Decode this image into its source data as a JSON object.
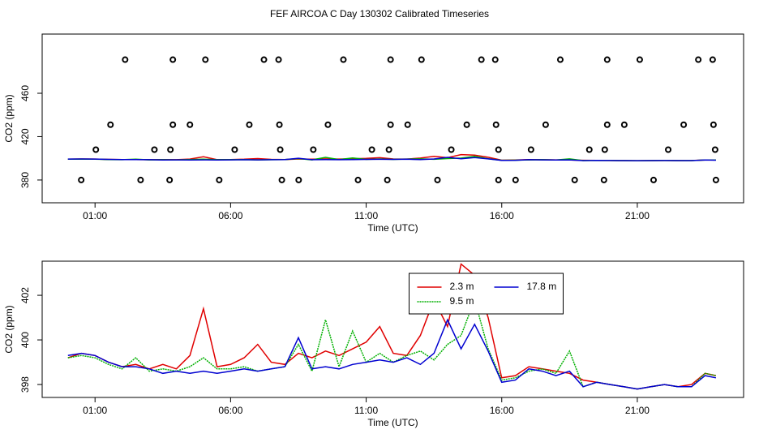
{
  "chart_data": [
    {
      "type": "line",
      "title": "FEF AIRCOA C  Day 130302  Calibrated Timeseries",
      "xlabel": "Time (UTC)",
      "ylabel": "CO2 (ppm)",
      "xlim": [
        -0.95,
        24.92
      ],
      "ylim": [
        359,
        514.6
      ],
      "xticks": [
        {
          "value": 1,
          "label": "01:00"
        },
        {
          "value": 6,
          "label": "06:00"
        },
        {
          "value": 11,
          "label": "11:00"
        },
        {
          "value": 16,
          "label": "16:00"
        },
        {
          "value": 21,
          "label": "21:00"
        }
      ],
      "yticks": [
        380,
        420,
        460
      ],
      "x": [
        0,
        0.5,
        1,
        1.5,
        2,
        2.5,
        3,
        3.5,
        4,
        4.5,
        5,
        5.5,
        6,
        6.5,
        7,
        7.5,
        8,
        8.5,
        9,
        9.5,
        10,
        10.5,
        11,
        11.5,
        12,
        12.5,
        13,
        13.5,
        14,
        14.5,
        15,
        15.5,
        16,
        16.5,
        17,
        17.5,
        18,
        18.5,
        19,
        19.5,
        20,
        20.5,
        21,
        21.5,
        22,
        22.5,
        23,
        23.5,
        23.9
      ],
      "series": [
        {
          "color": "#e00000",
          "values": [
            399.2,
            399.4,
            399.3,
            399.0,
            398.8,
            398.9,
            398.7,
            398.9,
            398.7,
            399.3,
            401.4,
            398.8,
            398.9,
            399.2,
            399.8,
            399.0,
            398.9,
            399.4,
            399.2,
            399.5,
            399.3,
            399.6,
            399.9,
            400.6,
            399.4,
            399.3,
            400.2,
            401.8,
            400.6,
            403.4,
            402.9,
            401.0,
            398.3,
            398.4,
            398.8,
            398.7,
            398.6,
            398.5,
            398.2,
            398.1,
            398.0,
            397.9,
            397.8,
            397.9,
            398.0,
            397.9,
            398.0,
            398.5,
            398.4
          ]
        },
        {
          "color": "#00b000",
          "values": [
            399.2,
            399.3,
            399.2,
            398.9,
            398.7,
            399.2,
            398.6,
            398.7,
            398.6,
            398.8,
            399.2,
            398.7,
            398.7,
            398.8,
            398.6,
            398.7,
            398.8,
            399.8,
            398.6,
            400.9,
            398.8,
            400.4,
            399.0,
            399.4,
            399.0,
            399.3,
            399.5,
            399.1,
            399.8,
            400.2,
            401.8,
            399.6,
            398.2,
            398.3,
            398.6,
            398.7,
            398.5,
            399.5,
            397.9,
            398.1,
            398.0,
            397.9,
            397.8,
            397.9,
            398.0,
            397.9,
            397.9,
            398.5,
            398.4
          ]
        },
        {
          "color": "#0000d0",
          "values": [
            399.3,
            399.4,
            399.3,
            399.0,
            398.8,
            398.8,
            398.7,
            398.5,
            398.6,
            398.5,
            398.6,
            398.5,
            398.6,
            398.7,
            398.6,
            398.7,
            398.8,
            400.1,
            398.7,
            398.8,
            398.7,
            398.9,
            399.0,
            399.1,
            399.0,
            399.2,
            398.9,
            399.4,
            400.9,
            399.6,
            400.7,
            399.5,
            398.1,
            398.2,
            398.7,
            398.6,
            398.4,
            398.6,
            397.9,
            398.1,
            398.0,
            397.9,
            397.8,
            397.9,
            398.0,
            397.9,
            397.9,
            398.4,
            398.3
          ]
        }
      ],
      "points": {
        "color": "#000000",
        "x": [
          2.11,
          3.87,
          5.07,
          7.23,
          7.77,
          10.16,
          11.9,
          13.04,
          15.25,
          15.76,
          18.16,
          19.89,
          21.09,
          23.25,
          23.78,
          1.57,
          3.87,
          4.5,
          6.69,
          7.8,
          9.59,
          11.9,
          12.53,
          14.71,
          15.79,
          17.62,
          19.89,
          20.52,
          22.71,
          23.81,
          1.03,
          3.19,
          3.78,
          6.15,
          7.83,
          9.05,
          11.21,
          11.84,
          14.14,
          15.88,
          17.08,
          19.23,
          19.8,
          22.14,
          23.87,
          0.49,
          2.68,
          3.75,
          5.58,
          7.89,
          8.51,
          10.7,
          11.78,
          13.63,
          15.88,
          16.51,
          18.69,
          19.77,
          21.6,
          23.9
        ],
        "values": [
          491,
          491,
          491,
          491,
          491,
          491,
          491,
          491,
          491,
          491,
          491,
          491,
          491,
          491,
          491,
          431,
          431,
          431,
          431,
          431,
          431,
          431,
          431,
          431,
          431,
          431,
          431,
          431,
          431,
          431,
          408,
          408,
          408,
          408,
          408,
          408,
          408,
          408,
          408,
          408,
          408,
          408,
          408,
          408,
          408,
          380,
          380,
          380,
          380,
          380,
          380,
          380,
          380,
          380,
          380,
          380,
          380,
          380,
          380,
          380
        ]
      }
    },
    {
      "type": "line",
      "xlabel": "Time (UTC)",
      "ylabel": "CO2 (ppm)",
      "legend": "top",
      "xlim": [
        -0.95,
        24.92
      ],
      "ylim": [
        397.42,
        403.53
      ],
      "xticks": [
        {
          "value": 1,
          "label": "01:00"
        },
        {
          "value": 6,
          "label": "06:00"
        },
        {
          "value": 11,
          "label": "11:00"
        },
        {
          "value": 16,
          "label": "16:00"
        },
        {
          "value": 21,
          "label": "21:00"
        }
      ],
      "yticks": [
        398,
        400,
        402
      ],
      "x": [
        0,
        0.5,
        1,
        1.5,
        2,
        2.5,
        3,
        3.5,
        4,
        4.5,
        5,
        5.5,
        6,
        6.5,
        7,
        7.5,
        8,
        8.5,
        9,
        9.5,
        10,
        10.5,
        11,
        11.5,
        12,
        12.5,
        13,
        13.5,
        14,
        14.5,
        15,
        15.5,
        16,
        16.5,
        17,
        17.5,
        18,
        18.5,
        19,
        19.5,
        20,
        20.5,
        21,
        21.5,
        22,
        22.5,
        23,
        23.5,
        23.9
      ],
      "series": [
        {
          "name": "2.3 m",
          "color": "#e00000",
          "values": [
            399.2,
            399.4,
            399.3,
            399.0,
            398.8,
            398.9,
            398.7,
            398.9,
            398.7,
            399.3,
            401.4,
            398.8,
            398.9,
            399.2,
            399.8,
            399.0,
            398.9,
            399.4,
            399.2,
            399.5,
            399.3,
            399.6,
            399.9,
            400.6,
            399.4,
            399.3,
            400.2,
            401.8,
            400.6,
            403.4,
            402.9,
            401.0,
            398.3,
            398.4,
            398.8,
            398.7,
            398.6,
            398.5,
            398.2,
            398.1,
            398.0,
            397.9,
            397.8,
            397.9,
            398.0,
            397.9,
            398.0,
            398.5,
            398.4
          ]
        },
        {
          "name": "9.5 m",
          "color": "#00b000",
          "dashed": true,
          "values": [
            399.2,
            399.3,
            399.2,
            398.9,
            398.7,
            399.2,
            398.6,
            398.7,
            398.6,
            398.8,
            399.2,
            398.7,
            398.7,
            398.8,
            398.6,
            398.7,
            398.8,
            399.8,
            398.6,
            400.9,
            398.8,
            400.4,
            399.0,
            399.4,
            399.0,
            399.3,
            399.5,
            399.1,
            399.8,
            400.2,
            401.8,
            399.6,
            398.2,
            398.3,
            398.6,
            398.7,
            398.5,
            399.5,
            397.9,
            398.1,
            398.0,
            397.9,
            397.8,
            397.9,
            398.0,
            397.9,
            397.9,
            398.5,
            398.4
          ]
        },
        {
          "name": "17.8 m",
          "color": "#0000d0",
          "values": [
            399.3,
            399.4,
            399.3,
            399.0,
            398.8,
            398.8,
            398.7,
            398.5,
            398.6,
            398.5,
            398.6,
            398.5,
            398.6,
            398.7,
            398.6,
            398.7,
            398.8,
            400.1,
            398.7,
            398.8,
            398.7,
            398.9,
            399.0,
            399.1,
            399.0,
            399.2,
            398.9,
            399.4,
            400.9,
            399.6,
            400.7,
            399.5,
            398.1,
            398.2,
            398.7,
            398.6,
            398.4,
            398.6,
            397.9,
            398.1,
            398.0,
            397.9,
            397.8,
            397.9,
            398.0,
            397.9,
            397.9,
            398.4,
            398.3
          ]
        }
      ]
    }
  ]
}
